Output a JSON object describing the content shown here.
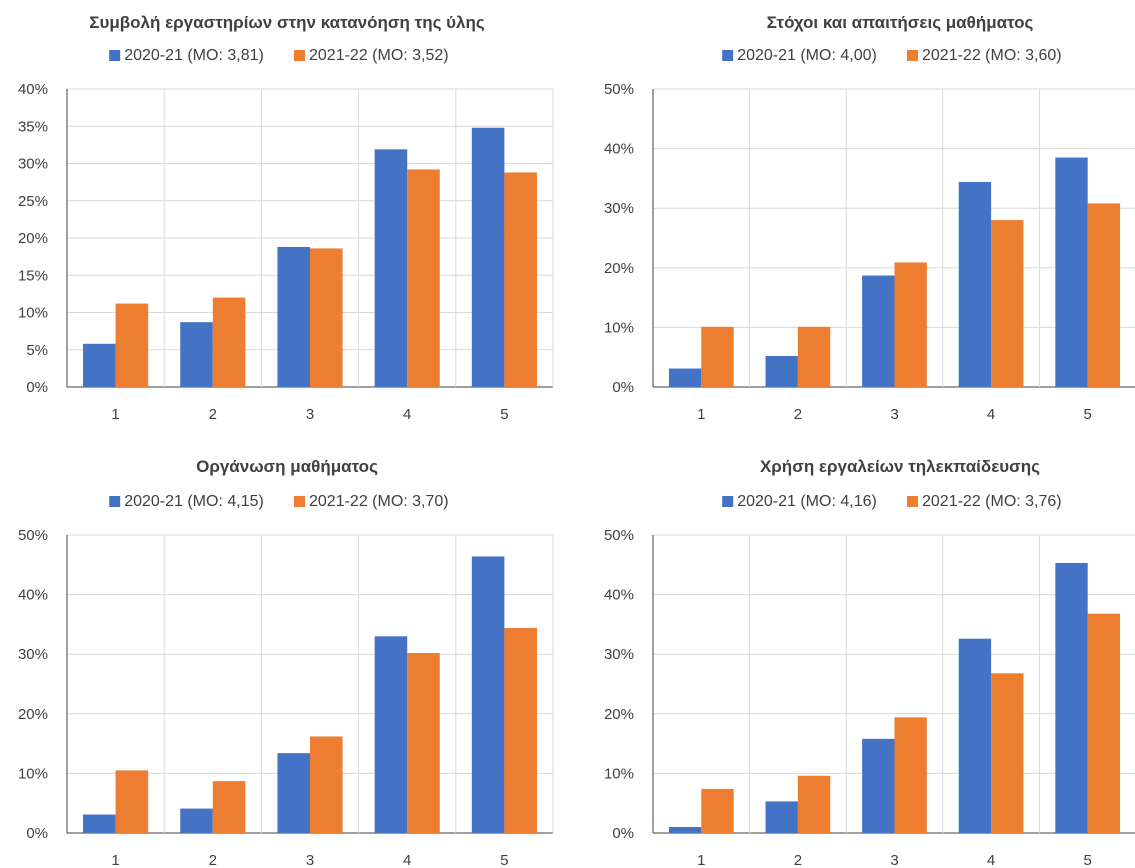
{
  "colors": {
    "series_2020_21": "#4472C4",
    "series_2021_22": "#ED7D31",
    "grid": "#D9D9D9",
    "text": "#404040"
  },
  "chart_data": [
    {
      "type": "bar",
      "title": "Συμβολή εργαστηρίων στην κατανόηση της ύλης",
      "categories": [
        "1",
        "2",
        "3",
        "4",
        "5"
      ],
      "ylim": [
        0,
        40
      ],
      "yticks": [
        "0%",
        "5%",
        "10%",
        "15%",
        "20%",
        "25%",
        "30%",
        "35%",
        "40%"
      ],
      "grid": true,
      "legend_position": "top",
      "series": [
        {
          "name": "2020-21 (ΜΟ: 3,81)",
          "values": [
            5.8,
            8.7,
            18.8,
            31.9,
            34.8
          ]
        },
        {
          "name": "2021-22 (ΜΟ: 3,52)",
          "values": [
            11.2,
            12.0,
            18.6,
            29.2,
            28.8
          ]
        }
      ]
    },
    {
      "type": "bar",
      "title": "Στόχοι και απαιτήσεις μαθήματος",
      "categories": [
        "1",
        "2",
        "3",
        "4",
        "5"
      ],
      "ylim": [
        0,
        50
      ],
      "yticks": [
        "0%",
        "10%",
        "20%",
        "30%",
        "40%",
        "50%"
      ],
      "grid": true,
      "legend_position": "top",
      "series": [
        {
          "name": "2020-21 (ΜΟ: 4,00)",
          "values": [
            3.1,
            5.2,
            18.7,
            34.4,
            38.5
          ]
        },
        {
          "name": "2021-22 (ΜΟ: 3,60)",
          "values": [
            10.1,
            10.1,
            20.9,
            28.0,
            30.8
          ]
        }
      ]
    },
    {
      "type": "bar",
      "title": "Οργάνωση μαθήματος",
      "categories": [
        "1",
        "2",
        "3",
        "4",
        "5"
      ],
      "ylim": [
        0,
        50
      ],
      "yticks": [
        "0%",
        "10%",
        "20%",
        "30%",
        "40%",
        "50%"
      ],
      "grid": true,
      "legend_position": "top",
      "series": [
        {
          "name": "2020-21 (ΜΟ: 4,15)",
          "values": [
            3.1,
            4.1,
            13.4,
            33.0,
            46.4
          ]
        },
        {
          "name": "2021-22 (ΜΟ: 3,70)",
          "values": [
            10.5,
            8.7,
            16.2,
            30.2,
            34.4
          ]
        }
      ]
    },
    {
      "type": "bar",
      "title": "Χρήση εργαλείων τηλεκπαίδευσης",
      "categories": [
        "1",
        "2",
        "3",
        "4",
        "5"
      ],
      "ylim": [
        0,
        50
      ],
      "yticks": [
        "0%",
        "10%",
        "20%",
        "30%",
        "40%",
        "50%"
      ],
      "grid": true,
      "legend_position": "top",
      "series": [
        {
          "name": "2020-21 (ΜΟ: 4,16)",
          "values": [
            1.0,
            5.3,
            15.8,
            32.6,
            45.3
          ]
        },
        {
          "name": "2021-22 (ΜΟ: 3,76)",
          "values": [
            7.4,
            9.6,
            19.4,
            26.8,
            36.8
          ]
        }
      ]
    }
  ]
}
